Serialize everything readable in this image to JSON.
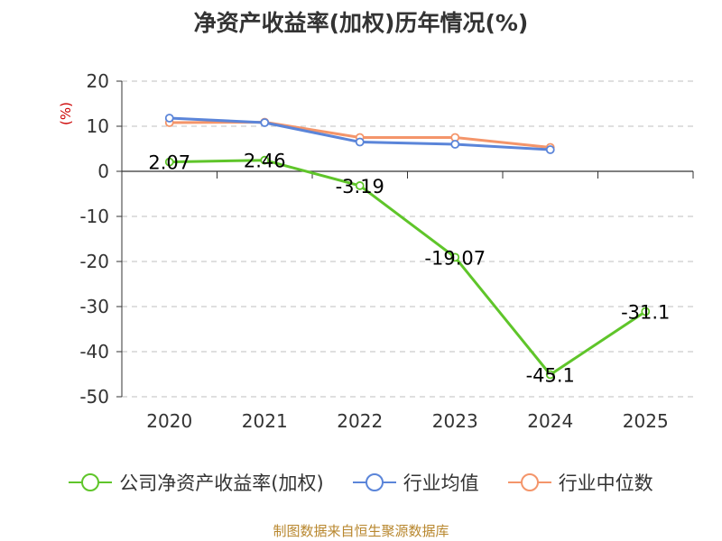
{
  "chart_data": {
    "type": "line",
    "title": "净资产收益率(加权)历年情况(%)",
    "ylabel": "(%)",
    "categories": [
      "2020",
      "2021",
      "2022",
      "2023",
      "2024",
      "2025"
    ],
    "ylim": [
      -50,
      20
    ],
    "yticks": [
      20,
      10,
      0,
      -10,
      -20,
      -30,
      -40,
      -50
    ],
    "grid": true,
    "legend_position": "bottom",
    "series": [
      {
        "name": "公司净资产收益率(加权)",
        "color": "#5fc52a",
        "values": [
          2.07,
          2.46,
          -3.19,
          -19.07,
          -45.1,
          -31.1
        ],
        "labels": [
          "2.07",
          "2.46",
          "-3.19",
          "-19.07",
          "-45.1",
          "-31.1"
        ]
      },
      {
        "name": "行业均值",
        "color": "#5b85d9",
        "values": [
          11.8,
          10.8,
          6.5,
          6.0,
          4.8,
          null
        ]
      },
      {
        "name": "行业中位数",
        "color": "#f4956a",
        "values": [
          10.8,
          10.9,
          7.5,
          7.5,
          5.3,
          null
        ]
      }
    ],
    "source": "制图数据来自恒生聚源数据库"
  }
}
